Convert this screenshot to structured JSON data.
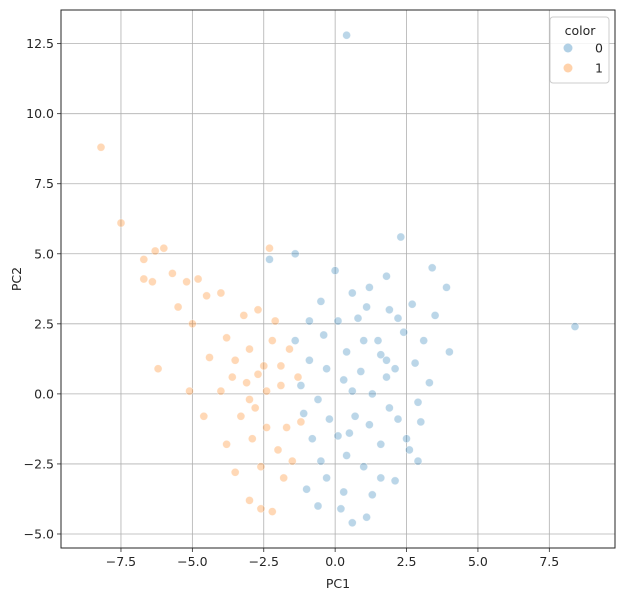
{
  "chart_data": {
    "type": "scatter",
    "title": "",
    "xlabel": "PC1",
    "ylabel": "PC2",
    "xlim": [
      -9.6,
      9.8
    ],
    "ylim": [
      -5.5,
      13.7
    ],
    "xticks": [
      -7.5,
      -5.0,
      -2.5,
      0.0,
      2.5,
      5.0,
      7.5
    ],
    "xtick_labels": [
      "−7.5",
      "−5.0",
      "−2.5",
      "0.0",
      "2.5",
      "5.0",
      "7.5"
    ],
    "yticks": [
      -5.0,
      -2.5,
      0.0,
      2.5,
      5.0,
      7.5,
      10.0,
      12.5
    ],
    "ytick_labels": [
      "−5.0",
      "−2.5",
      "0.0",
      "2.5",
      "5.0",
      "7.5",
      "10.0",
      "12.5"
    ],
    "grid": true,
    "legend": {
      "title": "color",
      "position": "top-right"
    },
    "series": [
      {
        "name": "0",
        "color": "#1f77b4",
        "alpha": 0.3,
        "points": [
          [
            0.4,
            12.8
          ],
          [
            8.4,
            2.4
          ],
          [
            2.3,
            5.6
          ],
          [
            -2.3,
            4.8
          ],
          [
            -1.4,
            5.0
          ],
          [
            0.0,
            4.4
          ],
          [
            3.4,
            4.5
          ],
          [
            2.7,
            3.2
          ],
          [
            3.9,
            3.8
          ],
          [
            3.5,
            2.8
          ],
          [
            4.0,
            1.5
          ],
          [
            3.3,
            0.4
          ],
          [
            3.0,
            -1.0
          ],
          [
            2.9,
            -2.4
          ],
          [
            1.6,
            -3.0
          ],
          [
            1.1,
            -4.4
          ],
          [
            0.6,
            -4.6
          ],
          [
            0.2,
            -4.1
          ],
          [
            -0.6,
            -4.0
          ],
          [
            -1.0,
            -3.4
          ],
          [
            -0.3,
            -3.0
          ],
          [
            1.8,
            4.2
          ],
          [
            1.2,
            3.8
          ],
          [
            0.6,
            3.6
          ],
          [
            -0.5,
            3.3
          ],
          [
            -0.9,
            2.6
          ],
          [
            -1.4,
            1.9
          ],
          [
            2.2,
            2.7
          ],
          [
            3.1,
            1.9
          ],
          [
            2.5,
            -1.6
          ],
          [
            2.2,
            -0.9
          ],
          [
            1.8,
            0.6
          ],
          [
            1.5,
            1.9
          ],
          [
            0.8,
            2.7
          ],
          [
            0.1,
            2.6
          ],
          [
            -0.4,
            2.1
          ],
          [
            -0.9,
            1.2
          ],
          [
            -1.2,
            0.3
          ],
          [
            -1.1,
            -0.7
          ],
          [
            -0.8,
            -1.6
          ],
          [
            -0.5,
            -2.4
          ],
          [
            0.3,
            -3.5
          ],
          [
            1.3,
            -3.6
          ],
          [
            2.1,
            -3.1
          ],
          [
            2.6,
            -2.0
          ],
          [
            2.9,
            -0.3
          ],
          [
            2.8,
            1.1
          ],
          [
            2.4,
            2.2
          ],
          [
            1.9,
            3.0
          ],
          [
            1.1,
            3.1
          ],
          [
            0.4,
            1.5
          ],
          [
            0.9,
            0.8
          ],
          [
            1.3,
            0.0
          ],
          [
            0.7,
            -0.8
          ],
          [
            0.1,
            -1.5
          ],
          [
            0.4,
            -2.2
          ],
          [
            1.0,
            -2.6
          ],
          [
            1.6,
            -1.8
          ],
          [
            1.9,
            -0.5
          ],
          [
            2.1,
            0.9
          ],
          [
            1.6,
            1.4
          ],
          [
            1.0,
            1.9
          ],
          [
            0.3,
            0.5
          ],
          [
            -0.3,
            0.9
          ],
          [
            -0.6,
            -0.2
          ],
          [
            -0.2,
            -0.9
          ],
          [
            0.6,
            0.1
          ],
          [
            1.2,
            -1.1
          ],
          [
            1.8,
            1.2
          ],
          [
            0.5,
            -1.4
          ]
        ]
      },
      {
        "name": "1",
        "color": "#ff7f0e",
        "alpha": 0.3,
        "points": [
          [
            -8.2,
            8.8
          ],
          [
            -7.5,
            6.1
          ],
          [
            -6.7,
            4.8
          ],
          [
            -6.3,
            5.1
          ],
          [
            -6.0,
            5.2
          ],
          [
            -6.4,
            4.0
          ],
          [
            -5.7,
            4.3
          ],
          [
            -5.2,
            4.0
          ],
          [
            -4.8,
            4.1
          ],
          [
            -6.7,
            4.1
          ],
          [
            -6.2,
            0.9
          ],
          [
            -5.1,
            0.1
          ],
          [
            -5.5,
            3.1
          ],
          [
            -5.0,
            2.5
          ],
          [
            -4.5,
            3.5
          ],
          [
            -4.0,
            3.6
          ],
          [
            -2.3,
            5.2
          ],
          [
            -3.8,
            2.0
          ],
          [
            -4.4,
            1.3
          ],
          [
            -4.0,
            0.1
          ],
          [
            -4.6,
            -0.8
          ],
          [
            -3.8,
            -1.8
          ],
          [
            -3.5,
            -2.8
          ],
          [
            -3.0,
            -3.8
          ],
          [
            -2.6,
            -4.1
          ],
          [
            -2.2,
            -4.2
          ],
          [
            -1.8,
            -3.0
          ],
          [
            -1.5,
            -2.4
          ],
          [
            -1.2,
            -1.0
          ],
          [
            -1.3,
            0.6
          ],
          [
            -1.6,
            1.6
          ],
          [
            -2.1,
            2.6
          ],
          [
            -2.7,
            3.0
          ],
          [
            -3.2,
            2.8
          ],
          [
            -3.5,
            1.2
          ],
          [
            -3.1,
            0.4
          ],
          [
            -2.8,
            -0.5
          ],
          [
            -2.4,
            -1.2
          ],
          [
            -2.0,
            -2.0
          ],
          [
            -2.9,
            -1.6
          ],
          [
            -3.3,
            -0.8
          ],
          [
            -2.5,
            1.0
          ],
          [
            -1.9,
            0.3
          ],
          [
            -2.2,
            1.9
          ],
          [
            -3.0,
            1.6
          ],
          [
            -3.6,
            0.6
          ],
          [
            -2.6,
            -2.6
          ],
          [
            -1.7,
            -1.2
          ],
          [
            -1.9,
            1.0
          ],
          [
            -2.4,
            0.1
          ],
          [
            -3.0,
            -0.2
          ],
          [
            -2.7,
            0.7
          ]
        ]
      }
    ]
  }
}
